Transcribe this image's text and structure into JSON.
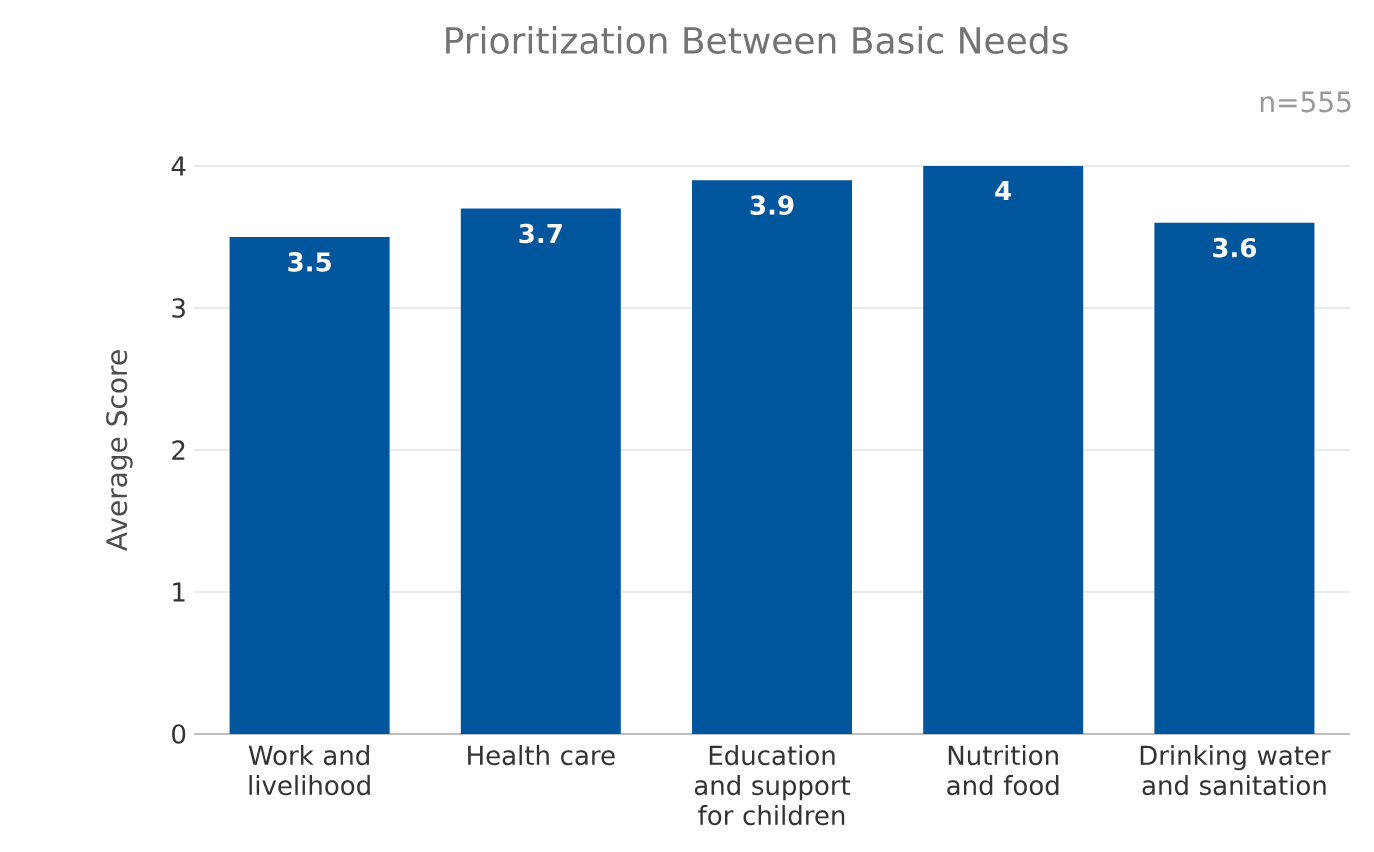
{
  "chart_data": {
    "type": "bar",
    "title": "Prioritization Between Basic Needs",
    "annotations": [
      "n=555"
    ],
    "ylabel": "Average Score",
    "categories": [
      "Work and livelihood",
      "Health care",
      "Education and support for children",
      "Nutrition and food",
      "Drinking water and sanitation"
    ],
    "values": [
      3.5,
      3.7,
      3.9,
      4,
      3.6
    ],
    "color": "#00569c",
    "ylim": [
      0,
      4
    ],
    "yticks": [
      0,
      1,
      2,
      3,
      4
    ],
    "grid": "y",
    "data_labels": true
  }
}
